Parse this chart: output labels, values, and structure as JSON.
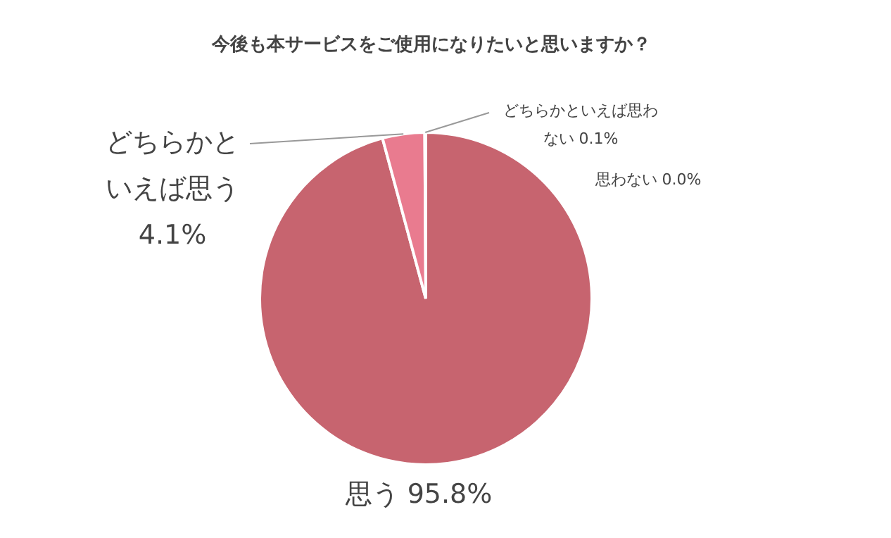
{
  "chart_data": {
    "type": "pie",
    "title": "今後も本サービスをご使用になりたいと思いますか？",
    "categories": [
      "思う",
      "どちらかといえば思う",
      "どちらかといえば思わない",
      "思わない"
    ],
    "values": [
      95.8,
      4.1,
      0.1,
      0.0
    ],
    "value_labels": [
      "95.8%",
      "4.1%",
      "0.1%",
      "0.0%"
    ],
    "colors": [
      "#c7646f",
      "#e97b8f",
      "#f0a0ae",
      "#f5c5cd"
    ],
    "legend": false
  }
}
